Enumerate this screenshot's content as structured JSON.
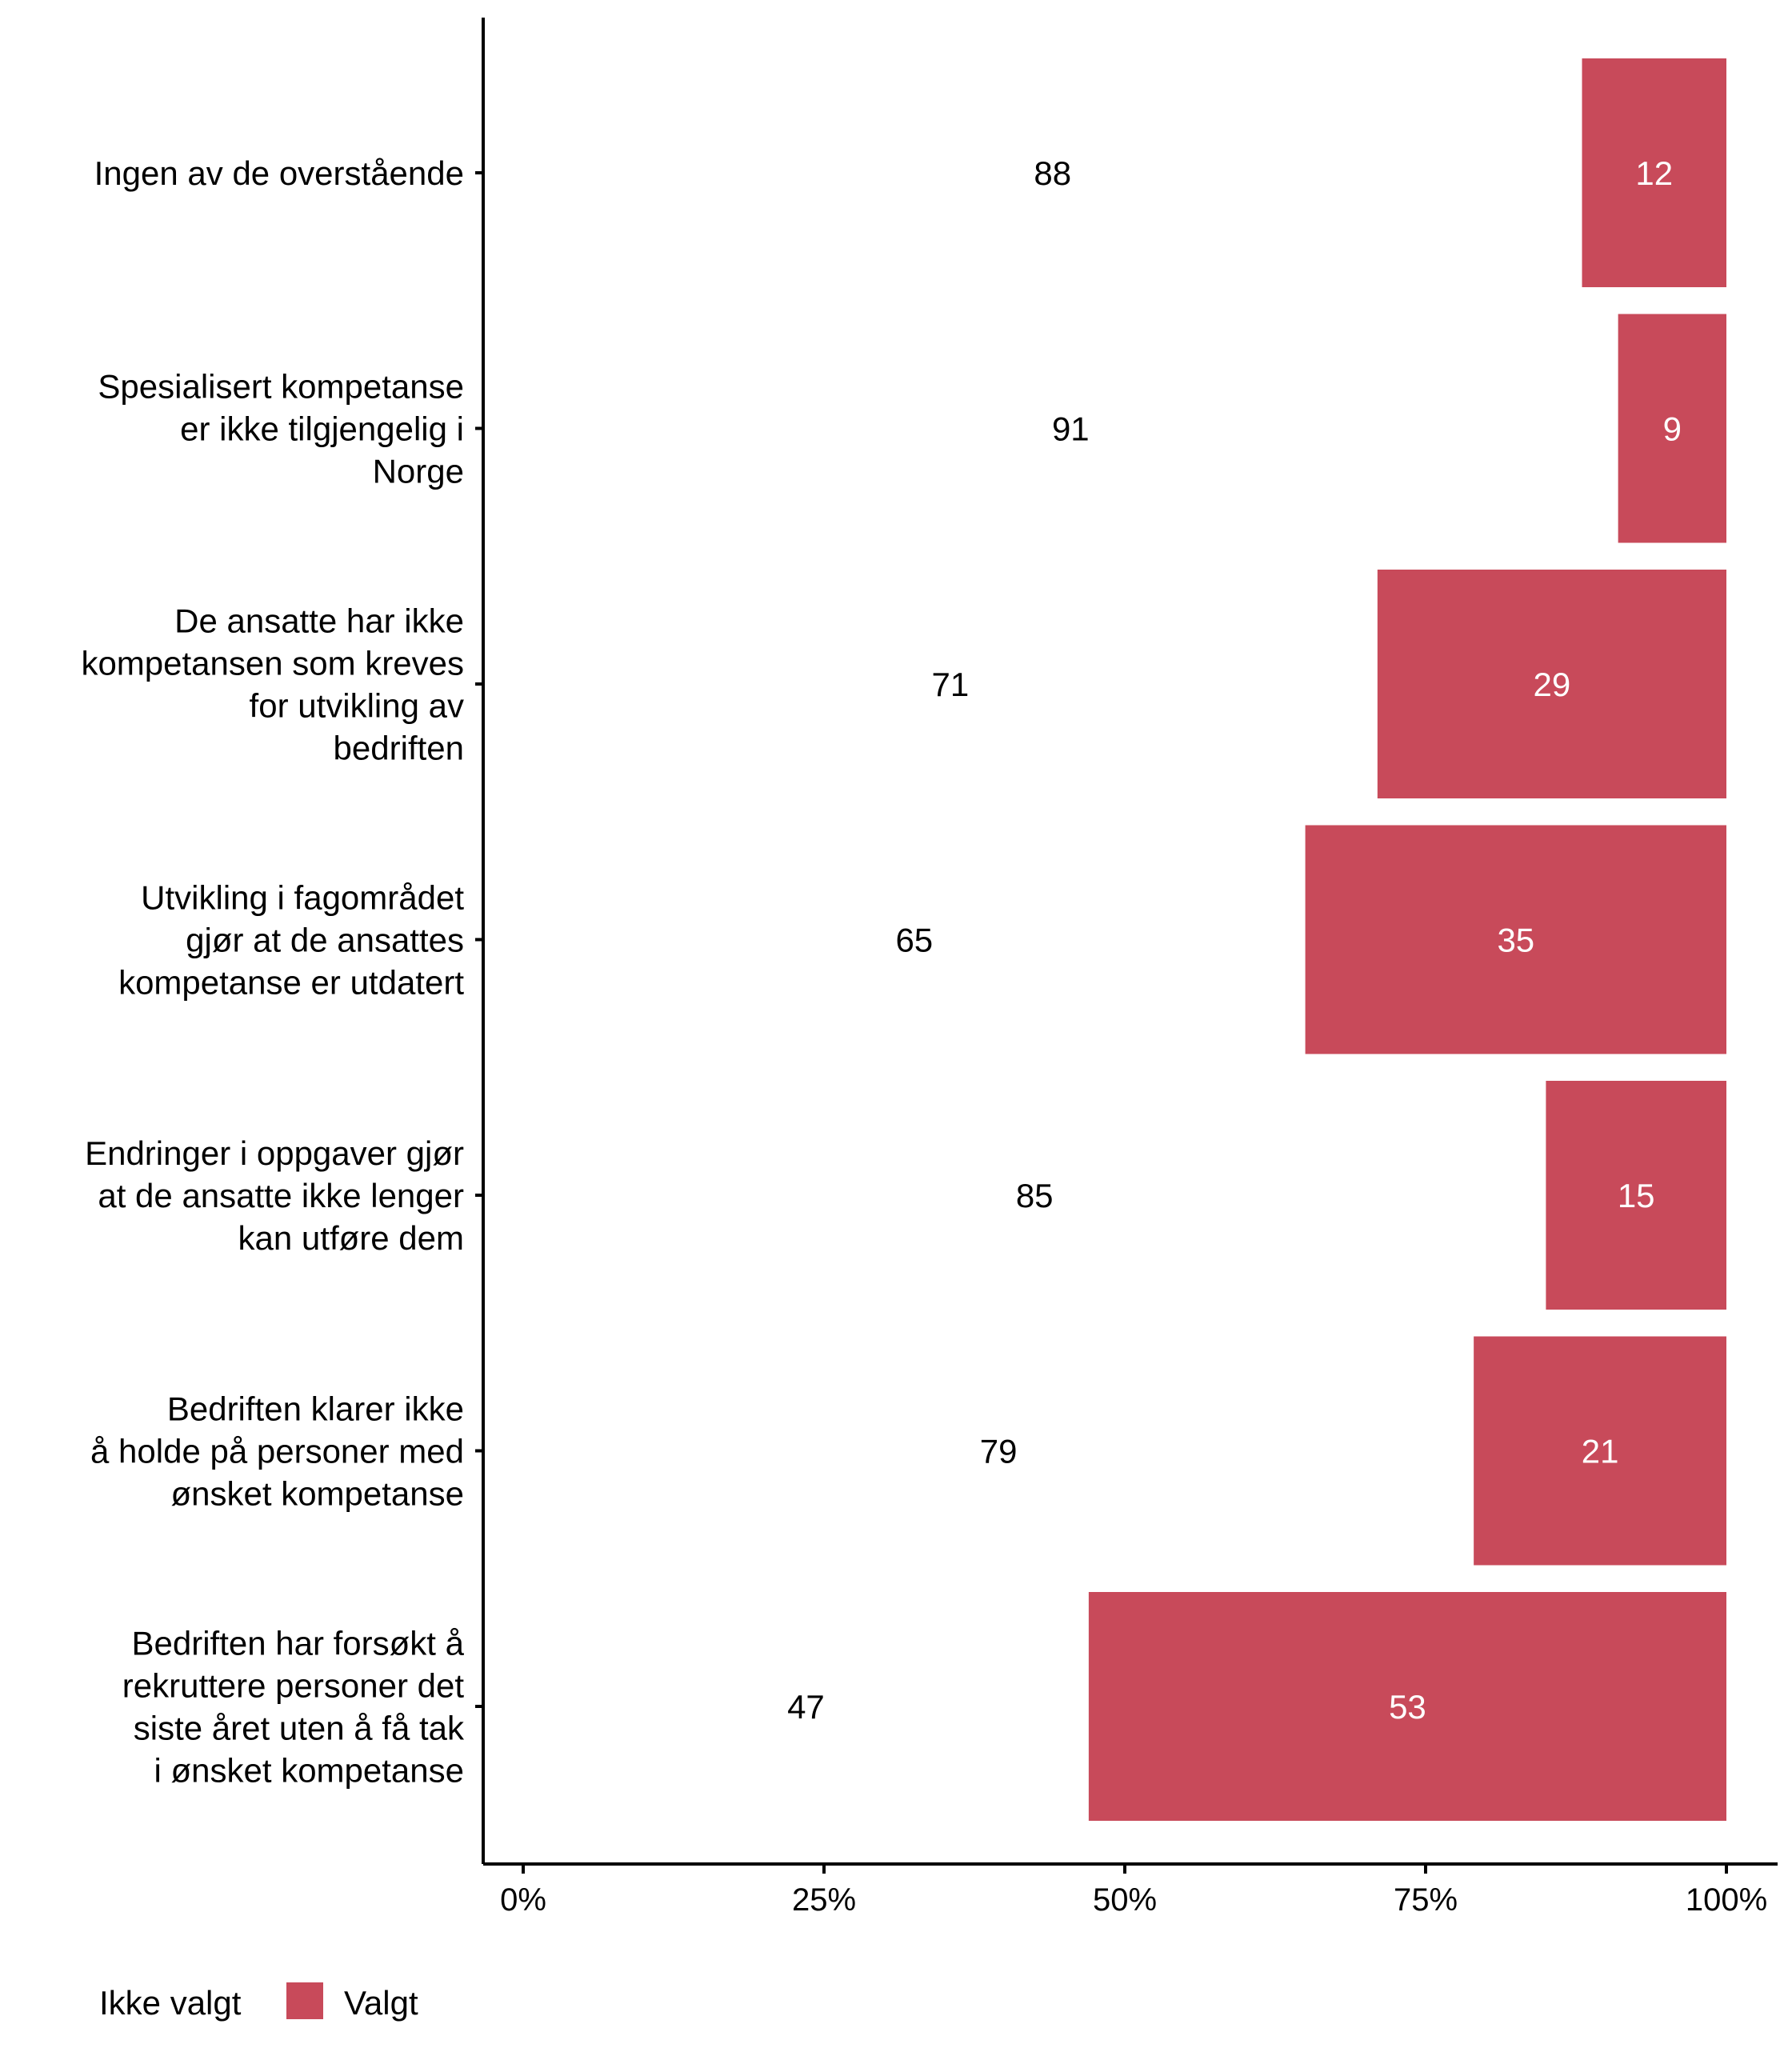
{
  "chart_data": {
    "type": "bar",
    "orientation": "horizontal",
    "stacked": true,
    "percent_stacked": true,
    "categories": [
      [
        "Ingen av de overstående"
      ],
      [
        "Spesialisert kompetanse",
        "er ikke tilgjengelig i",
        "Norge"
      ],
      [
        "De ansatte har ikke",
        "kompetansen som kreves",
        "for utvikling av",
        "bedriften"
      ],
      [
        "Utvikling i fagområdet",
        "gjør at de ansattes",
        "kompetanse er utdatert"
      ],
      [
        "Endringer i oppgaver gjør",
        "at de ansatte ikke lenger",
        "kan utføre dem"
      ],
      [
        "Bedriften klarer ikke",
        "å holde på personer med",
        "ønsket kompetanse"
      ],
      [
        "Bedriften har forsøkt å",
        "rekruttere personer det",
        "siste året uten å få tak",
        "i ønsket kompetanse"
      ]
    ],
    "series": [
      {
        "name": "Ikke valgt",
        "color": "#ffffff",
        "label_color": "#000000",
        "values": [
          88,
          91,
          71,
          65,
          85,
          79,
          47
        ]
      },
      {
        "name": "Valgt",
        "color": "#c84a5a",
        "label_color": "#ffffff",
        "values": [
          12,
          9,
          29,
          35,
          15,
          21,
          53
        ]
      }
    ],
    "x_ticks": [
      "0%",
      "25%",
      "50%",
      "75%",
      "100%"
    ],
    "xlim": [
      0,
      100
    ],
    "title": "",
    "xlabel": "",
    "ylabel": "",
    "grid": false,
    "legend_position": "bottom-left"
  }
}
